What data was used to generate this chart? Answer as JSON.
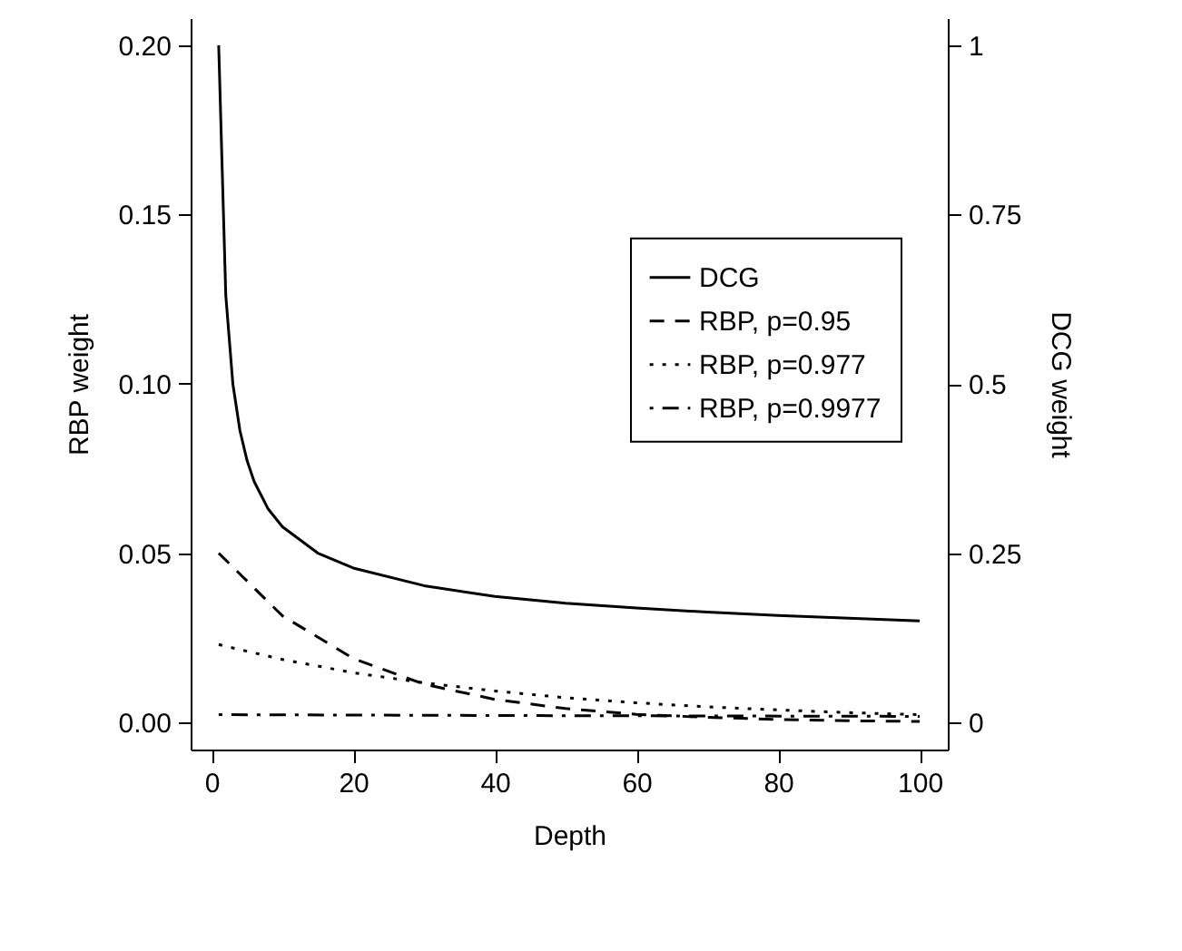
{
  "chart_data": {
    "type": "line",
    "xlabel": "Depth",
    "ylabel": "RBP weight",
    "y2label": "DCG weight",
    "xlim": [
      -2.96,
      103.96
    ],
    "xticks": [
      0,
      20,
      40,
      60,
      80,
      100
    ],
    "ylim": [
      -0.008,
      0.208
    ],
    "yticks": [
      {
        "value": 0,
        "label": "0.00"
      },
      {
        "value": 0.05,
        "label": "0.05"
      },
      {
        "value": 0.1,
        "label": "0.10"
      },
      {
        "value": 0.15,
        "label": "0.15"
      },
      {
        "value": 0.2,
        "label": "0.20"
      }
    ],
    "y2lim": [
      -0.04,
      1.04
    ],
    "y2ticks": [
      0,
      0.25,
      0.5,
      0.75,
      1
    ],
    "grid": false,
    "legend": "right",
    "marker": "none",
    "series": [
      {
        "name": "DCG",
        "color": "#000000",
        "line_style": "solid",
        "axis": "y2",
        "x": [
          1,
          2,
          3,
          4,
          5,
          6,
          8,
          10,
          15,
          20,
          30,
          40,
          50,
          60,
          70,
          80,
          90,
          100
        ],
        "values": [
          1,
          0.631,
          0.5,
          0.431,
          0.387,
          0.356,
          0.315,
          0.289,
          0.25,
          0.228,
          0.202,
          0.186,
          0.176,
          0.169,
          0.163,
          0.158,
          0.154,
          0.15
        ]
      },
      {
        "name": "RBP, p=0.95",
        "color": "#000000",
        "line_style": "dashed",
        "x": [
          1,
          10,
          20,
          30,
          40,
          50,
          60,
          70,
          80,
          90,
          100
        ],
        "values": [
          0.05,
          0.0315,
          0.0189,
          0.0113,
          0.0068,
          0.0041,
          0.0024,
          0.0015,
          0.0009,
          0.0005,
          0.0003
        ]
      },
      {
        "name": "RBP, p=0.977",
        "color": "#000000",
        "line_style": "dotted",
        "x": [
          1,
          10,
          20,
          30,
          40,
          50,
          60,
          70,
          80,
          90,
          100
        ],
        "values": [
          0.023,
          0.0186,
          0.0147,
          0.0117,
          0.0093,
          0.0073,
          0.0058,
          0.0046,
          0.0037,
          0.0029,
          0.0023
        ]
      },
      {
        "name": "RBP, p=0.9977",
        "color": "#000000",
        "line_style": "dashdot",
        "x": [
          1,
          50,
          100
        ],
        "values": [
          0.0023,
          0.002,
          0.0018
        ]
      }
    ]
  }
}
